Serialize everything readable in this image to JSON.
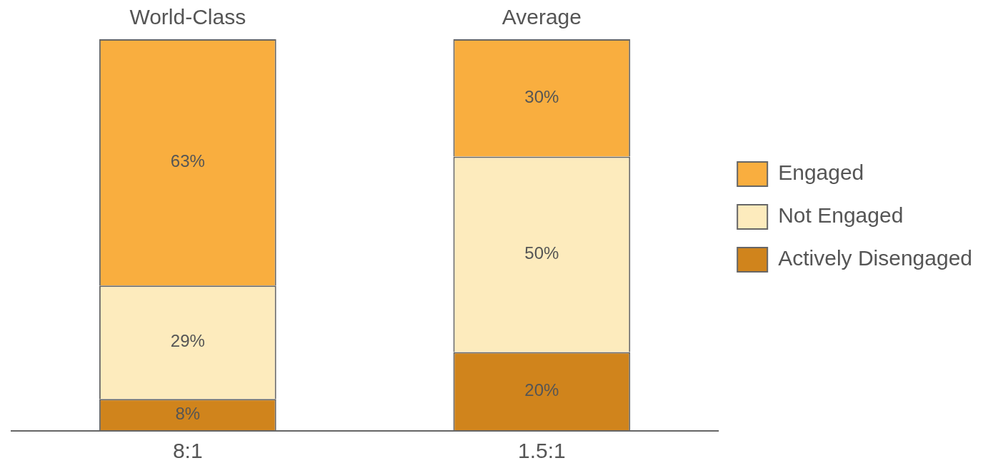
{
  "chart_data": {
    "type": "bar",
    "stacked": true,
    "categories": [
      "World-Class",
      "Average"
    ],
    "series": [
      {
        "name": "Actively Disengaged",
        "color": "#d0841c",
        "values": [
          8,
          20
        ],
        "value_labels": [
          "8%",
          "20%"
        ]
      },
      {
        "name": "Not Engaged",
        "color": "#fdebbd",
        "values": [
          29,
          50
        ],
        "value_labels": [
          "29%",
          "50%"
        ]
      },
      {
        "name": "Engaged",
        "color": "#f9ae3f",
        "values": [
          63,
          30
        ],
        "value_labels": [
          "63%",
          "30%"
        ]
      }
    ],
    "legend": "right",
    "grid": false,
    "annotations": [
      "8:1",
      "1.5:1"
    ]
  }
}
